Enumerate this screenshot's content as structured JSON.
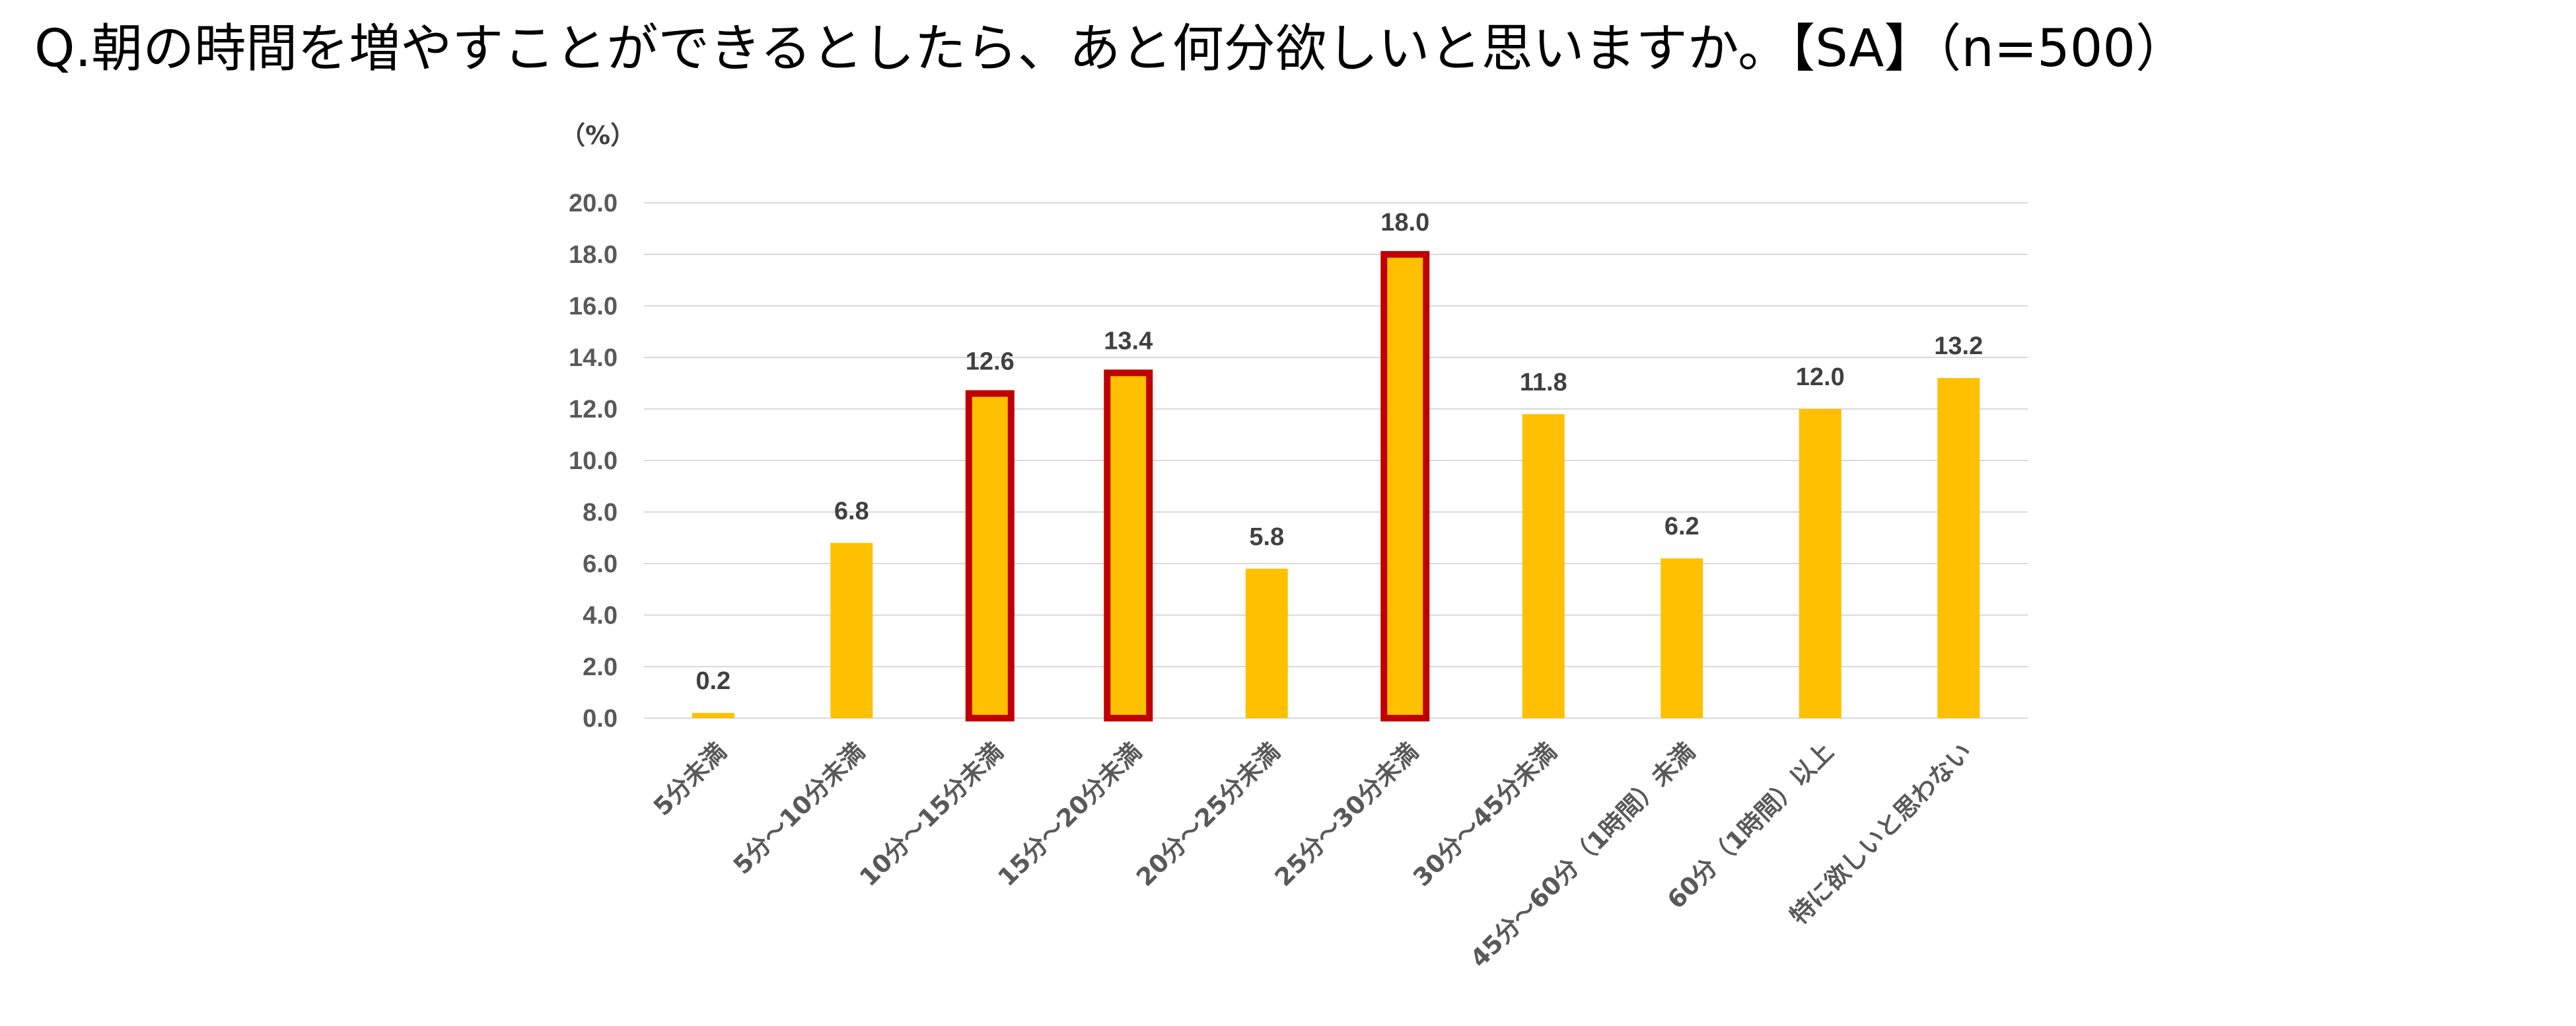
{
  "question": "Q.朝の時間を増やすことができるとしたら、あと何分欲しいと思いますか。【SA】（n=500）",
  "colors": {
    "bar_fill": "#ffc000",
    "highlight_stroke": "#c00000",
    "grid": "#d9d9d9"
  },
  "chart_data": {
    "type": "bar",
    "title": "Q.朝の時間を増やすことができるとしたら、あと何分欲しいと思いますか。【SA】（n=500）",
    "ylabel": "（%）",
    "xlabel": "",
    "ylim": [
      0,
      20
    ],
    "yticks": [
      "0.0",
      "2.0",
      "4.0",
      "6.0",
      "8.0",
      "10.0",
      "12.0",
      "14.0",
      "16.0",
      "18.0",
      "20.0"
    ],
    "grid": true,
    "categories": [
      "5分未満",
      "5分～10分未満",
      "10分～15分未満",
      "15分～20分未満",
      "20分～25分未満",
      "25分～30分未満",
      "30分～45分未満",
      "45分～60分（1時間）未満",
      "60分（1時間）以上",
      "特に欲しいと思わない"
    ],
    "values": [
      0.2,
      6.8,
      12.6,
      13.4,
      5.8,
      18.0,
      11.8,
      6.2,
      12.0,
      13.2
    ],
    "value_labels": [
      "0.2",
      "6.8",
      "12.6",
      "13.4",
      "5.8",
      "18.0",
      "11.8",
      "6.2",
      "12.0",
      "13.2"
    ],
    "highlighted": [
      false,
      false,
      true,
      true,
      false,
      true,
      false,
      false,
      false,
      false
    ]
  }
}
